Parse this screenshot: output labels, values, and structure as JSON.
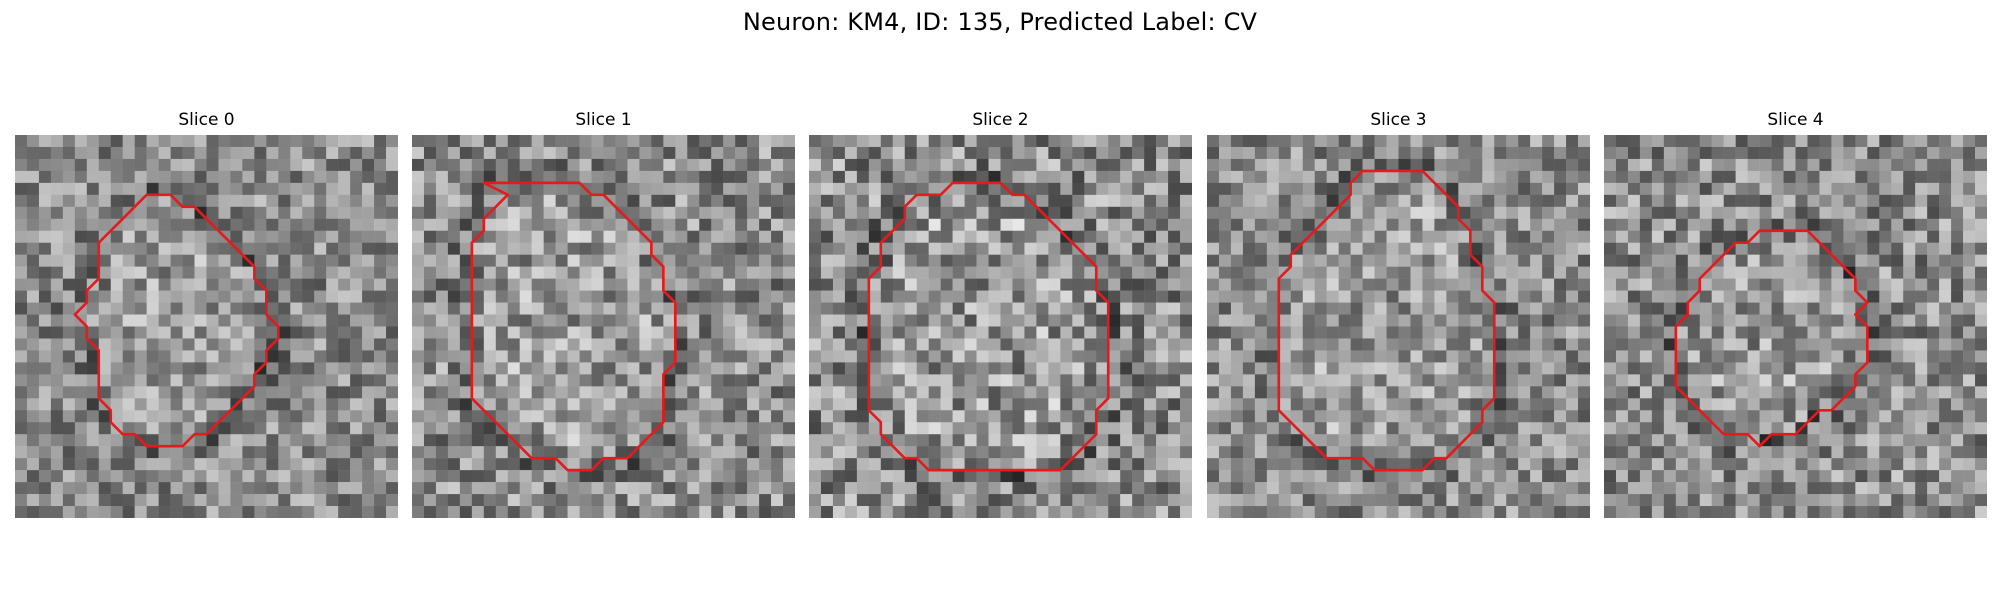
{
  "figure": {
    "title": "Neuron: KM4, ID: 135, Predicted Label: CV"
  },
  "panels": [
    {
      "title": "Slice 0",
      "seed": 3,
      "contrast": 1.0,
      "contour": [
        [
          11,
          5
        ],
        [
          12,
          5
        ],
        [
          13,
          5
        ],
        [
          14,
          6
        ],
        [
          15,
          6
        ],
        [
          16,
          7
        ],
        [
          17,
          8
        ],
        [
          18,
          9
        ],
        [
          19,
          10
        ],
        [
          20,
          11
        ],
        [
          20,
          12
        ],
        [
          21,
          13
        ],
        [
          21,
          15
        ],
        [
          22,
          16
        ],
        [
          22,
          17
        ],
        [
          21,
          18
        ],
        [
          21,
          19
        ],
        [
          20,
          20
        ],
        [
          20,
          21
        ],
        [
          19,
          22
        ],
        [
          18,
          23
        ],
        [
          17,
          24
        ],
        [
          16,
          25
        ],
        [
          15,
          25
        ],
        [
          14,
          26
        ],
        [
          13,
          26
        ],
        [
          12,
          26
        ],
        [
          11,
          26
        ],
        [
          10,
          25
        ],
        [
          9,
          25
        ],
        [
          8,
          24
        ],
        [
          8,
          23
        ],
        [
          7,
          22
        ],
        [
          7,
          20
        ],
        [
          7,
          18
        ],
        [
          6,
          17
        ],
        [
          6,
          16
        ],
        [
          5,
          15
        ],
        [
          6,
          14
        ],
        [
          6,
          13
        ],
        [
          7,
          12
        ],
        [
          7,
          9
        ],
        [
          8,
          8
        ],
        [
          9,
          7
        ],
        [
          10,
          6
        ]
      ]
    },
    {
      "title": "Slice 1",
      "seed": 11,
      "contrast": 1.1,
      "contour": [
        [
          6,
          4
        ],
        [
          7,
          4
        ],
        [
          8,
          4
        ],
        [
          9,
          4
        ],
        [
          10,
          4
        ],
        [
          11,
          4
        ],
        [
          12,
          4
        ],
        [
          13,
          4
        ],
        [
          14,
          4
        ],
        [
          15,
          5
        ],
        [
          16,
          5
        ],
        [
          17,
          6
        ],
        [
          18,
          7
        ],
        [
          19,
          8
        ],
        [
          20,
          9
        ],
        [
          20,
          10
        ],
        [
          21,
          11
        ],
        [
          21,
          13
        ],
        [
          22,
          14
        ],
        [
          22,
          16
        ],
        [
          22,
          17
        ],
        [
          22,
          18
        ],
        [
          22,
          19
        ],
        [
          21,
          20
        ],
        [
          21,
          21
        ],
        [
          21,
          22
        ],
        [
          21,
          23
        ],
        [
          21,
          24
        ],
        [
          20,
          25
        ],
        [
          19,
          26
        ],
        [
          18,
          27
        ],
        [
          17,
          27
        ],
        [
          16,
          27
        ],
        [
          15,
          28
        ],
        [
          14,
          28
        ],
        [
          13,
          28
        ],
        [
          12,
          27
        ],
        [
          11,
          27
        ],
        [
          10,
          27
        ],
        [
          9,
          26
        ],
        [
          8,
          25
        ],
        [
          7,
          24
        ],
        [
          6,
          23
        ],
        [
          5,
          22
        ],
        [
          5,
          20
        ],
        [
          5,
          18
        ],
        [
          5,
          16
        ],
        [
          5,
          14
        ],
        [
          5,
          12
        ],
        [
          5,
          9
        ],
        [
          6,
          8
        ],
        [
          6,
          7
        ],
        [
          7,
          6
        ],
        [
          8,
          5
        ]
      ]
    },
    {
      "title": "Slice 2",
      "seed": 23,
      "contrast": 1.2,
      "contour": [
        [
          9,
          5
        ],
        [
          10,
          5
        ],
        [
          11,
          5
        ],
        [
          12,
          4
        ],
        [
          13,
          4
        ],
        [
          14,
          4
        ],
        [
          15,
          4
        ],
        [
          16,
          4
        ],
        [
          17,
          5
        ],
        [
          18,
          5
        ],
        [
          19,
          6
        ],
        [
          20,
          7
        ],
        [
          21,
          8
        ],
        [
          22,
          9
        ],
        [
          23,
          10
        ],
        [
          24,
          11
        ],
        [
          24,
          12
        ],
        [
          24,
          13
        ],
        [
          25,
          14
        ],
        [
          25,
          15
        ],
        [
          25,
          16
        ],
        [
          25,
          17
        ],
        [
          25,
          18
        ],
        [
          25,
          19
        ],
        [
          25,
          20
        ],
        [
          25,
          21
        ],
        [
          25,
          22
        ],
        [
          24,
          23
        ],
        [
          24,
          24
        ],
        [
          24,
          25
        ],
        [
          23,
          26
        ],
        [
          22,
          27
        ],
        [
          21,
          28
        ],
        [
          20,
          28
        ],
        [
          19,
          28
        ],
        [
          18,
          28
        ],
        [
          17,
          28
        ],
        [
          16,
          28
        ],
        [
          15,
          28
        ],
        [
          14,
          28
        ],
        [
          13,
          28
        ],
        [
          12,
          28
        ],
        [
          11,
          28
        ],
        [
          10,
          28
        ],
        [
          9,
          27
        ],
        [
          8,
          27
        ],
        [
          7,
          26
        ],
        [
          6,
          25
        ],
        [
          6,
          24
        ],
        [
          5,
          23
        ],
        [
          5,
          22
        ],
        [
          5,
          20
        ],
        [
          5,
          18
        ],
        [
          5,
          16
        ],
        [
          5,
          14
        ],
        [
          5,
          12
        ],
        [
          6,
          11
        ],
        [
          6,
          9
        ],
        [
          7,
          8
        ],
        [
          8,
          7
        ],
        [
          8,
          6
        ]
      ]
    },
    {
      "title": "Slice 3",
      "seed": 37,
      "contrast": 1.0,
      "contour": [
        [
          13,
          3
        ],
        [
          14,
          3
        ],
        [
          15,
          3
        ],
        [
          16,
          3
        ],
        [
          17,
          3
        ],
        [
          18,
          3
        ],
        [
          19,
          4
        ],
        [
          20,
          5
        ],
        [
          21,
          6
        ],
        [
          21,
          7
        ],
        [
          22,
          8
        ],
        [
          22,
          9
        ],
        [
          22,
          10
        ],
        [
          23,
          11
        ],
        [
          23,
          12
        ],
        [
          23,
          13
        ],
        [
          24,
          14
        ],
        [
          24,
          16
        ],
        [
          24,
          18
        ],
        [
          24,
          20
        ],
        [
          24,
          22
        ],
        [
          23,
          23
        ],
        [
          23,
          24
        ],
        [
          22,
          25
        ],
        [
          21,
          26
        ],
        [
          20,
          27
        ],
        [
          19,
          27
        ],
        [
          18,
          28
        ],
        [
          17,
          28
        ],
        [
          16,
          28
        ],
        [
          15,
          28
        ],
        [
          14,
          28
        ],
        [
          13,
          27
        ],
        [
          12,
          27
        ],
        [
          11,
          27
        ],
        [
          10,
          27
        ],
        [
          9,
          26
        ],
        [
          8,
          25
        ],
        [
          7,
          24
        ],
        [
          6,
          23
        ],
        [
          6,
          22
        ],
        [
          6,
          20
        ],
        [
          6,
          18
        ],
        [
          6,
          16
        ],
        [
          6,
          14
        ],
        [
          6,
          12
        ],
        [
          7,
          11
        ],
        [
          7,
          10
        ],
        [
          8,
          9
        ],
        [
          9,
          8
        ],
        [
          10,
          7
        ],
        [
          11,
          6
        ],
        [
          12,
          5
        ],
        [
          12,
          4
        ]
      ]
    },
    {
      "title": "Slice 4",
      "seed": 53,
      "contrast": 1.1,
      "contour": [
        [
          13,
          8
        ],
        [
          14,
          8
        ],
        [
          15,
          8
        ],
        [
          16,
          8
        ],
        [
          17,
          8
        ],
        [
          18,
          9
        ],
        [
          19,
          10
        ],
        [
          20,
          11
        ],
        [
          21,
          12
        ],
        [
          21,
          13
        ],
        [
          22,
          14
        ],
        [
          21,
          15
        ],
        [
          22,
          16
        ],
        [
          22,
          17
        ],
        [
          22,
          18
        ],
        [
          22,
          19
        ],
        [
          21,
          20
        ],
        [
          21,
          21
        ],
        [
          20,
          22
        ],
        [
          19,
          23
        ],
        [
          18,
          23
        ],
        [
          17,
          24
        ],
        [
          16,
          25
        ],
        [
          15,
          25
        ],
        [
          14,
          25
        ],
        [
          13,
          26
        ],
        [
          12,
          25
        ],
        [
          11,
          25
        ],
        [
          10,
          25
        ],
        [
          9,
          24
        ],
        [
          8,
          23
        ],
        [
          7,
          22
        ],
        [
          6,
          21
        ],
        [
          6,
          20
        ],
        [
          6,
          19
        ],
        [
          6,
          18
        ],
        [
          6,
          17
        ],
        [
          6,
          16
        ],
        [
          7,
          15
        ],
        [
          7,
          14
        ],
        [
          8,
          13
        ],
        [
          8,
          12
        ],
        [
          9,
          11
        ],
        [
          10,
          10
        ],
        [
          11,
          9
        ],
        [
          12,
          9
        ]
      ]
    }
  ]
}
